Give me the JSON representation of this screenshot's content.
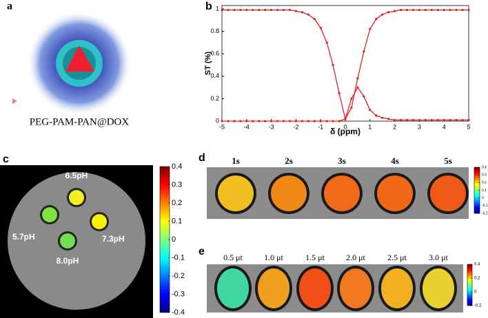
{
  "figure": {
    "panel_labels": [
      "a",
      "b",
      "c",
      "d",
      "e"
    ],
    "a": {
      "caption": "PEG-PAM-PAN@DOX"
    },
    "c": {
      "labels": [
        "6.5pH",
        "5.7pH",
        "7.3pH",
        "8.0pH"
      ],
      "colorbar_lim": [
        -0.4,
        0.4
      ],
      "colorbar_ticks": [
        0.4,
        0.3,
        0.2,
        0.1,
        0,
        -0.1,
        -0.2,
        -0.3,
        -0.4
      ]
    },
    "d": {
      "labels": [
        "1s",
        "2s",
        "3s",
        "4s",
        "5s"
      ],
      "colorbar_lim": [
        -0.2,
        0.4
      ],
      "colorbar_ticks": [
        0.4,
        0.3,
        0.2,
        0.1,
        0,
        -0.1,
        -0.2
      ]
    },
    "e": {
      "labels": [
        "0.5 μt",
        "1.0 μt",
        "1.5 μt",
        "2.0 μt",
        "2.5 μt",
        "3.0 μt"
      ],
      "colorbar_lim": [
        -0.2,
        0.4
      ],
      "colorbar_ticks": [
        0.4,
        0.2,
        0,
        -0.2
      ]
    }
  },
  "chart_data": {
    "type": "line",
    "x_label": "δ (ppm)",
    "y_label": "ST (%)",
    "x": [
      -5,
      -4.75,
      -4.5,
      -4.25,
      -4,
      -3.75,
      -3.5,
      -3.25,
      -3,
      -2.75,
      -2.5,
      -2.25,
      -2,
      -1.75,
      -1.5,
      -1.25,
      -1,
      -0.75,
      -0.5,
      -0.25,
      0,
      0.25,
      0.5,
      0.75,
      1,
      1.25,
      1.5,
      1.75,
      2,
      2.25,
      2.5,
      2.75,
      3,
      3.25,
      3.5,
      3.75,
      4,
      4.25,
      4.5,
      4.75,
      5
    ],
    "series": [
      {
        "color": "#e02020",
        "values": [
          0.99,
          0.99,
          0.99,
          0.99,
          0.99,
          0.99,
          0.99,
          0.99,
          0.99,
          0.99,
          0.99,
          0.99,
          0.98,
          0.97,
          0.95,
          0.91,
          0.83,
          0.7,
          0.5,
          0.25,
          0.02,
          0.12,
          0.38,
          0.62,
          0.82,
          0.91,
          0.95,
          0.97,
          0.98,
          0.99,
          0.99,
          0.99,
          0.99,
          0.99,
          0.99,
          0.99,
          0.99,
          0.99,
          0.99,
          0.99,
          0.99
        ]
      },
      {
        "color": "#e02020",
        "values": [
          0,
          0,
          0,
          0,
          0,
          0,
          0,
          0,
          0,
          0,
          0,
          0,
          0,
          0,
          0,
          0,
          0,
          0,
          0,
          0,
          0.02,
          0.2,
          0.3,
          0.22,
          0.1,
          0.05,
          0.03,
          0.02,
          0.01,
          0.01,
          0.01,
          0.01,
          0.01,
          0.01,
          0.01,
          0.01,
          0.01,
          0.01,
          0.01,
          0.01,
          0.01
        ]
      }
    ],
    "xlim": [
      -5,
      5
    ],
    "xticks": [
      -5,
      -4,
      -3,
      -2,
      -1,
      0,
      1,
      2,
      3,
      4,
      5
    ],
    "ylim": [
      0,
      1.03
    ],
    "yticks": [
      0,
      0.2,
      0.4,
      0.6,
      0.8,
      1
    ]
  }
}
